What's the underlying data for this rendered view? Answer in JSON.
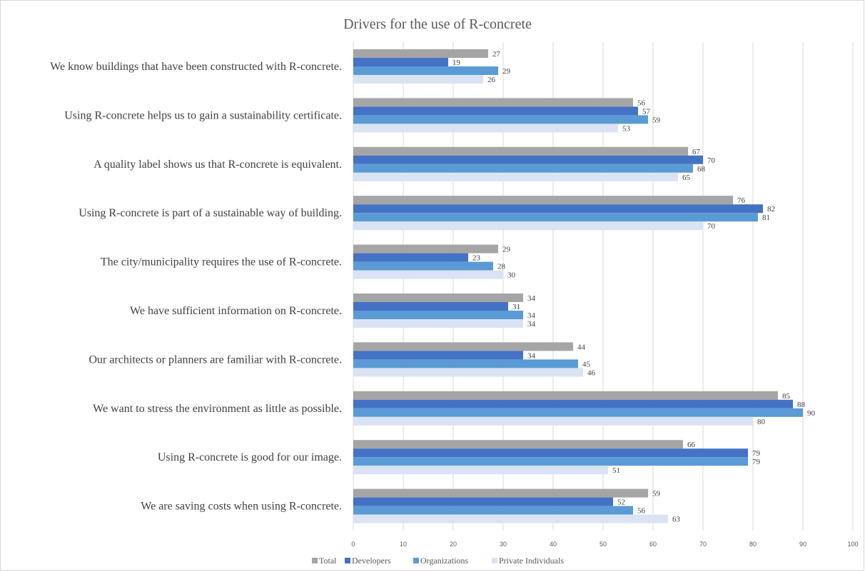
{
  "chart_data": {
    "type": "bar",
    "orientation": "horizontal",
    "title": "Drivers for the use of R-concrete",
    "categories": [
      "We know buildings that have been constructed with R-concrete.",
      "Using R-concrete helps us to gain a sustainability certificate.",
      "A quality label shows us that R-concrete is equivalent.",
      "Using R-concrete is part of a sustainable way of building.",
      "The city/municipality requires the use of R-concrete.",
      "We have sufficient information on R-concrete.",
      "Our architects or planners are familiar with R-concrete.",
      "We want to stress the environment as little as possible.",
      "Using R-concrete is good for our image.",
      "We are saving costs when using R-concrete."
    ],
    "series": [
      {
        "name": "Total",
        "color": "#a5a5a5",
        "values": [
          27,
          56,
          67,
          76,
          29,
          34,
          44,
          85,
          66,
          59
        ]
      },
      {
        "name": "Developers",
        "color": "#4472c4",
        "values": [
          19,
          57,
          70,
          82,
          23,
          31,
          34,
          88,
          79,
          52
        ]
      },
      {
        "name": "Organizations",
        "color": "#5b9bd5",
        "values": [
          29,
          59,
          68,
          81,
          28,
          34,
          45,
          90,
          79,
          56
        ]
      },
      {
        "name": "Private Individuals",
        "color": "#dae3f3",
        "values": [
          26,
          53,
          65,
          70,
          30,
          34,
          46,
          80,
          51,
          63
        ]
      }
    ],
    "xlim": [
      0,
      100
    ],
    "xticks": [
      0,
      10,
      20,
      30,
      40,
      50,
      60,
      70,
      80,
      90,
      100
    ],
    "xlabel": "",
    "ylabel": "",
    "grid": true,
    "gridline_color": "#d9d9d9",
    "legend_position": "bottom"
  }
}
